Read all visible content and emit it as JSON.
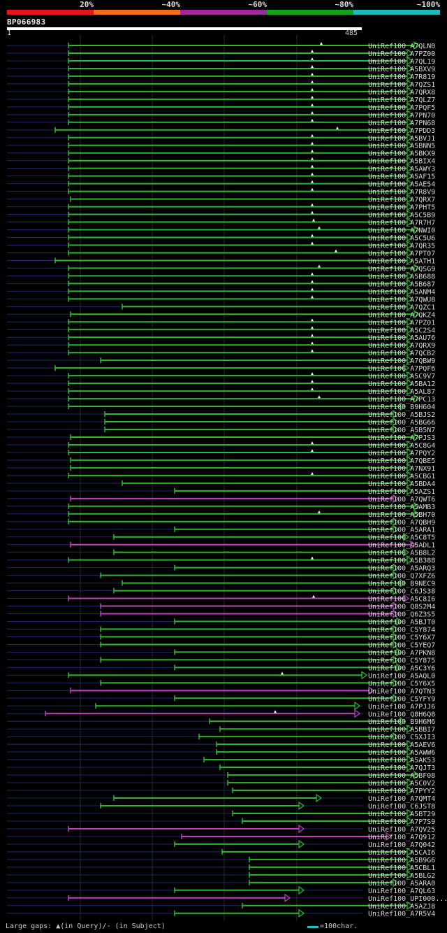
{
  "legend": {
    "bands": [
      {
        "label": "20%",
        "color": "#e8141c"
      },
      {
        "label": "~40%",
        "color": "#ef6f1c"
      },
      {
        "label": "~60%",
        "color": "#9c2a9e"
      },
      {
        "label": "~80%",
        "color": "#17a11a"
      },
      {
        "label": "~100%",
        "color": "#1fb8c0"
      }
    ]
  },
  "query": {
    "label": "BP066983",
    "start": "1",
    "end": "485",
    "length": 485
  },
  "colors": {
    "green": "#2fb82f",
    "magenta": "#c040c0",
    "baseline": "#1a2a6a",
    "grid": "#2a2a2a",
    "gap": "#f0f0f0"
  },
  "hits": [
    {
      "name": "UniRef100_A7QLN0",
      "start": 98,
      "end": 600,
      "color": "green",
      "gap": 460
    },
    {
      "name": "UniRef100_A7PZ00",
      "start": 98,
      "end": 590,
      "color": "green",
      "gap": 447
    },
    {
      "name": "UniRef100_A7QL19",
      "start": 98,
      "end": 590,
      "color": "green",
      "gap": 447
    },
    {
      "name": "UniRef100_A5BXV9",
      "start": 98,
      "end": 590,
      "color": "green",
      "gap": 447
    },
    {
      "name": "UniRef100_A7R819",
      "start": 98,
      "end": 590,
      "color": "green",
      "gap": 447
    },
    {
      "name": "UniRef100_A7QZS1",
      "start": 98,
      "end": 590,
      "color": "green",
      "gap": 447
    },
    {
      "name": "UniRef100_A7QRX8",
      "start": 98,
      "end": 590,
      "color": "green",
      "gap": 447
    },
    {
      "name": "UniRef100_A7QLZ7",
      "start": 98,
      "end": 590,
      "color": "green",
      "gap": 447
    },
    {
      "name": "UniRef100_A7PQF5",
      "start": 98,
      "end": 590,
      "color": "green",
      "gap": 447
    },
    {
      "name": "UniRef100_A7PN70",
      "start": 98,
      "end": 590,
      "color": "green",
      "gap": 447
    },
    {
      "name": "UniRef100_A7PN68",
      "start": 98,
      "end": 590,
      "color": "green",
      "gap": 447
    },
    {
      "name": "UniRef100_A7PDD3",
      "start": 79,
      "end": 590,
      "color": "green",
      "gap": 483
    },
    {
      "name": "UniRef100_A5BVJ1",
      "start": 98,
      "end": 590,
      "color": "green",
      "gap": 447
    },
    {
      "name": "UniRef100_A5BNN5",
      "start": 98,
      "end": 590,
      "color": "green",
      "gap": 447
    },
    {
      "name": "UniRef100_A5BKX9",
      "start": 98,
      "end": 590,
      "color": "green",
      "gap": 447
    },
    {
      "name": "UniRef100_A5BIX4",
      "start": 98,
      "end": 590,
      "color": "green",
      "gap": 447
    },
    {
      "name": "UniRef100_A5AWY3",
      "start": 98,
      "end": 590,
      "color": "green",
      "gap": 447
    },
    {
      "name": "UniRef100_A5AF15",
      "start": 98,
      "end": 590,
      "color": "green",
      "gap": 447
    },
    {
      "name": "UniRef100_A5AE54",
      "start": 98,
      "end": 590,
      "color": "green",
      "gap": 447
    },
    {
      "name": "UniRef100_A7R8V9",
      "start": 98,
      "end": 590,
      "color": "green",
      "gap": 447
    },
    {
      "name": "UniRef100_A7QRX7",
      "start": 101,
      "end": 590,
      "color": "green",
      "gap": null
    },
    {
      "name": "UniRef100_A7PHT5",
      "start": 98,
      "end": 590,
      "color": "green",
      "gap": 447
    },
    {
      "name": "UniRef100_A5C5B9",
      "start": 98,
      "end": 590,
      "color": "green",
      "gap": 447
    },
    {
      "name": "UniRef100_A7R7H7",
      "start": 98,
      "end": 590,
      "color": "green",
      "gap": 449
    },
    {
      "name": "UniRef100_A7NWI0",
      "start": 98,
      "end": 600,
      "color": "green",
      "gap": 457
    },
    {
      "name": "UniRef100_A5C5U6",
      "start": 98,
      "end": 590,
      "color": "green",
      "gap": 447
    },
    {
      "name": "UniRef100_A7QR35",
      "start": 98,
      "end": 590,
      "color": "green",
      "gap": 447
    },
    {
      "name": "UniRef100_A7PT07",
      "start": 98,
      "end": 590,
      "color": "green",
      "gap": 481
    },
    {
      "name": "UniRef100_A5ATH1",
      "start": 79,
      "end": 590,
      "color": "green",
      "gap": null
    },
    {
      "name": "UniRef100_A7QSG9",
      "start": 98,
      "end": 600,
      "color": "green",
      "gap": 457
    },
    {
      "name": "UniRef100_A5B688",
      "start": 98,
      "end": 590,
      "color": "green",
      "gap": 447
    },
    {
      "name": "UniRef100_A5B687",
      "start": 98,
      "end": 590,
      "color": "green",
      "gap": 447
    },
    {
      "name": "UniRef100_A5ANM4",
      "start": 98,
      "end": 590,
      "color": "green",
      "gap": 447
    },
    {
      "name": "UniRef100_A7QWU8",
      "start": 98,
      "end": 590,
      "color": "green",
      "gap": 447
    },
    {
      "name": "UniRef100_A7QZC1",
      "start": 175,
      "end": 590,
      "color": "green",
      "gap": null
    },
    {
      "name": "UniRef100_A7QKZ4",
      "start": 101,
      "end": 600,
      "color": "green",
      "gap": null
    },
    {
      "name": "UniRef100_A7PZ01",
      "start": 98,
      "end": 590,
      "color": "green",
      "gap": 447
    },
    {
      "name": "UniRef100_A5C2S4",
      "start": 98,
      "end": 590,
      "color": "green",
      "gap": 447
    },
    {
      "name": "UniRef100_A5AU76",
      "start": 98,
      "end": 590,
      "color": "green",
      "gap": 447
    },
    {
      "name": "UniRef100_A7QRX9",
      "start": 98,
      "end": 590,
      "color": "green",
      "gap": 447
    },
    {
      "name": "UniRef100_A7QCB2",
      "start": 98,
      "end": 590,
      "color": "green",
      "gap": 447
    },
    {
      "name": "UniRef100_A7QBW9",
      "start": 144,
      "end": 590,
      "color": "green",
      "gap": null
    },
    {
      "name": "UniRef100_A7PQF6",
      "start": 79,
      "end": 585,
      "color": "green",
      "gap": null
    },
    {
      "name": "UniRef100_A5C9V7",
      "start": 98,
      "end": 590,
      "color": "green",
      "gap": 447
    },
    {
      "name": "UniRef100_A5BA12",
      "start": 98,
      "end": 590,
      "color": "green",
      "gap": 447
    },
    {
      "name": "UniRef100_A5AL87",
      "start": 98,
      "end": 590,
      "color": "green",
      "gap": 447
    },
    {
      "name": "UniRef100_A7PC13",
      "start": 98,
      "end": 600,
      "color": "green",
      "gap": 457
    },
    {
      "name": "UniRef100_B9H604",
      "start": 98,
      "end": 580,
      "color": "green",
      "gap": null
    },
    {
      "name": "UniRef100_A5BJS2",
      "start": 150,
      "end": 570,
      "color": "green",
      "gap": null
    },
    {
      "name": "UniRef100_A5BG66",
      "start": 150,
      "end": 570,
      "color": "green",
      "gap": null
    },
    {
      "name": "UniRef100_A5B5N7",
      "start": 150,
      "end": 570,
      "color": "green",
      "gap": null
    },
    {
      "name": "UniRef100_A7PJS3",
      "start": 101,
      "end": 600,
      "color": "green",
      "gap": null
    },
    {
      "name": "UniRef100_A5C8G4",
      "start": 98,
      "end": 590,
      "color": "green",
      "gap": 447
    },
    {
      "name": "UniRef100_A7PQY2",
      "start": 98,
      "end": 590,
      "color": "green",
      "gap": 447
    },
    {
      "name": "UniRef100_A7QBE5",
      "start": 101,
      "end": 590,
      "color": "green",
      "gap": null
    },
    {
      "name": "UniRef100_A7NX91",
      "start": 101,
      "end": 590,
      "color": "green",
      "gap": null
    },
    {
      "name": "UniRef100_A5CBG1",
      "start": 98,
      "end": 590,
      "color": "green",
      "gap": 447
    },
    {
      "name": "UniRef100_A5BDA4",
      "start": 175,
      "end": 590,
      "color": "green",
      "gap": null
    },
    {
      "name": "UniRef100_A5AZS1",
      "start": 250,
      "end": 590,
      "color": "green",
      "gap": null
    },
    {
      "name": "UniRef100_A7QWT6",
      "start": 101,
      "end": 570,
      "color": "magenta",
      "gap": null
    },
    {
      "name": "UniRef100_A5AMB3",
      "start": 98,
      "end": 600,
      "color": "green",
      "gap": null
    },
    {
      "name": "UniRef100_A5BH70",
      "start": 98,
      "end": 600,
      "color": "green",
      "gap": 457
    },
    {
      "name": "UniRef100_A7QBH9",
      "start": 98,
      "end": 570,
      "color": "green",
      "gap": null
    },
    {
      "name": "UniRef100_A5ARA1",
      "start": 250,
      "end": 570,
      "color": "green",
      "gap": null
    },
    {
      "name": "UniRef100_A5C8T5",
      "start": 163,
      "end": 585,
      "color": "green",
      "gap": null
    },
    {
      "name": "UniRef100_A5ADL1",
      "start": 101,
      "end": 595,
      "color": "magenta",
      "gap": null
    },
    {
      "name": "UniRef100_A5B8L2",
      "start": 163,
      "end": 585,
      "color": "green",
      "gap": null
    },
    {
      "name": "UniRef100_A5B388",
      "start": 98,
      "end": 590,
      "color": "green",
      "gap": 447
    },
    {
      "name": "UniRef100_A5ARQ3",
      "start": 250,
      "end": 570,
      "color": "green",
      "gap": null
    },
    {
      "name": "UniRef100_Q7XFZ6",
      "start": 144,
      "end": 570,
      "color": "green",
      "gap": null
    },
    {
      "name": "UniRef100_B9NEC9",
      "start": 175,
      "end": 580,
      "color": "green",
      "gap": null
    },
    {
      "name": "UniRef100_C6JS38",
      "start": 163,
      "end": 570,
      "color": "green",
      "gap": null
    },
    {
      "name": "UniRef100_A5C8I6",
      "start": 98,
      "end": 585,
      "color": "magenta",
      "gap": 449
    },
    {
      "name": "UniRef100_Q8S2M4",
      "start": 144,
      "end": 570,
      "color": "magenta",
      "gap": null
    },
    {
      "name": "UniRef100_Q6Z3S5",
      "start": 144,
      "end": 570,
      "color": "magenta",
      "gap": null
    },
    {
      "name": "UniRef100_A5BJT0",
      "start": 250,
      "end": 575,
      "color": "green",
      "gap": null
    },
    {
      "name": "UniRef100_C5Y874",
      "start": 144,
      "end": 570,
      "color": "green",
      "gap": null
    },
    {
      "name": "UniRef100_C5Y6X7",
      "start": 144,
      "end": 570,
      "color": "green",
      "gap": null
    },
    {
      "name": "UniRef100_C5YEQ7",
      "start": 144,
      "end": 570,
      "color": "green",
      "gap": null
    },
    {
      "name": "UniRef100_A7PKN8",
      "start": 250,
      "end": 575,
      "color": "green",
      "gap": null
    },
    {
      "name": "UniRef100_C5Y875",
      "start": 144,
      "end": 570,
      "color": "green",
      "gap": null
    },
    {
      "name": "UniRef100_A5C3Y6",
      "start": 250,
      "end": 575,
      "color": "green",
      "gap": null
    },
    {
      "name": "UniRef100_A5AQL0",
      "start": 98,
      "end": 525,
      "color": "green",
      "gap": 404
    },
    {
      "name": "UniRef100_C5Y6X5",
      "start": 144,
      "end": 570,
      "color": "green",
      "gap": null
    },
    {
      "name": "UniRef100_A7QTN3",
      "start": 101,
      "end": 535,
      "color": "magenta",
      "gap": null
    },
    {
      "name": "UniRef100_C5YFY9",
      "start": 250,
      "end": 570,
      "color": "green",
      "gap": null
    },
    {
      "name": "UniRef100_A7PJJ6",
      "start": 137,
      "end": 515,
      "color": "green",
      "gap": null
    },
    {
      "name": "UniRef100_Q8H6Q8",
      "start": 65,
      "end": 515,
      "color": "magenta",
      "gap": 394
    },
    {
      "name": "UniRef100_B9H6M6",
      "start": 300,
      "end": 580,
      "color": "green",
      "gap": null
    },
    {
      "name": "UniRef100_A5BBI7",
      "start": 315,
      "end": 590,
      "color": "green",
      "gap": null
    },
    {
      "name": "UniRef100_C5XJI3",
      "start": 285,
      "end": 570,
      "color": "green",
      "gap": null
    },
    {
      "name": "UniRef100_A5AEV6",
      "start": 310,
      "end": 590,
      "color": "green",
      "gap": null
    },
    {
      "name": "UniRef100_A5AWW6",
      "start": 310,
      "end": 590,
      "color": "green",
      "gap": null
    },
    {
      "name": "UniRef100_A5AK53",
      "start": 292,
      "end": 590,
      "color": "green",
      "gap": null
    },
    {
      "name": "UniRef100_A7QJT3",
      "start": 315,
      "end": 590,
      "color": "green",
      "gap": null
    },
    {
      "name": "UniRef100_A5BF08",
      "start": 326,
      "end": 600,
      "color": "green",
      "gap": null
    },
    {
      "name": "UniRef100_A5C0V2",
      "start": 326,
      "end": 590,
      "color": "green",
      "gap": null
    },
    {
      "name": "UniRef100_A7PYY2",
      "start": 333,
      "end": 590,
      "color": "green",
      "gap": null
    },
    {
      "name": "UniRef100_A7QMT4",
      "start": 163,
      "end": 460,
      "color": "green",
      "gap": null
    },
    {
      "name": "UniRef100_C6JST8",
      "start": 144,
      "end": 435,
      "color": "green",
      "gap": null
    },
    {
      "name": "UniRef100_A5BT29",
      "start": 333,
      "end": 590,
      "color": "green",
      "gap": null
    },
    {
      "name": "UniRef100_A7P7S9",
      "start": 347,
      "end": 590,
      "color": "green",
      "gap": null
    },
    {
      "name": "UniRef100_A7QV25",
      "start": 98,
      "end": 435,
      "color": "magenta",
      "gap": null
    },
    {
      "name": "UniRef100_A7Q912",
      "start": 260,
      "end": 560,
      "color": "magenta",
      "gap": null
    },
    {
      "name": "UniRef100_A7Q042",
      "start": 250,
      "end": 435,
      "color": "green",
      "gap": null
    },
    {
      "name": "UniRef100_A5CAI6",
      "start": 318,
      "end": 590,
      "color": "green",
      "gap": null
    },
    {
      "name": "UniRef100_A5B9G6",
      "start": 357,
      "end": 590,
      "color": "green",
      "gap": null
    },
    {
      "name": "UniRef100_A5CBL1",
      "start": 357,
      "end": 590,
      "color": "green",
      "gap": null
    },
    {
      "name": "UniRef100_A5BLG2",
      "start": 357,
      "end": 590,
      "color": "green",
      "gap": null
    },
    {
      "name": "UniRef100_A5ARA0",
      "start": 357,
      "end": 570,
      "color": "green",
      "gap": null
    },
    {
      "name": "UniRef100_A7QL63",
      "start": 250,
      "end": 435,
      "color": "green",
      "gap": null
    },
    {
      "name": "UniRef100_UPI000...",
      "start": 98,
      "end": 415,
      "color": "magenta",
      "gap": null
    },
    {
      "name": "UniRef100_A5AZJ8",
      "start": 347,
      "end": 590,
      "color": "green",
      "gap": null
    },
    {
      "name": "UniRef100_A7R5V4",
      "start": 250,
      "end": 435,
      "color": "green",
      "gap": null
    }
  ],
  "footer": {
    "gaps_text": "Large gaps: ▲(in Query)/- (in Subject)",
    "scale_text": "=100char."
  }
}
